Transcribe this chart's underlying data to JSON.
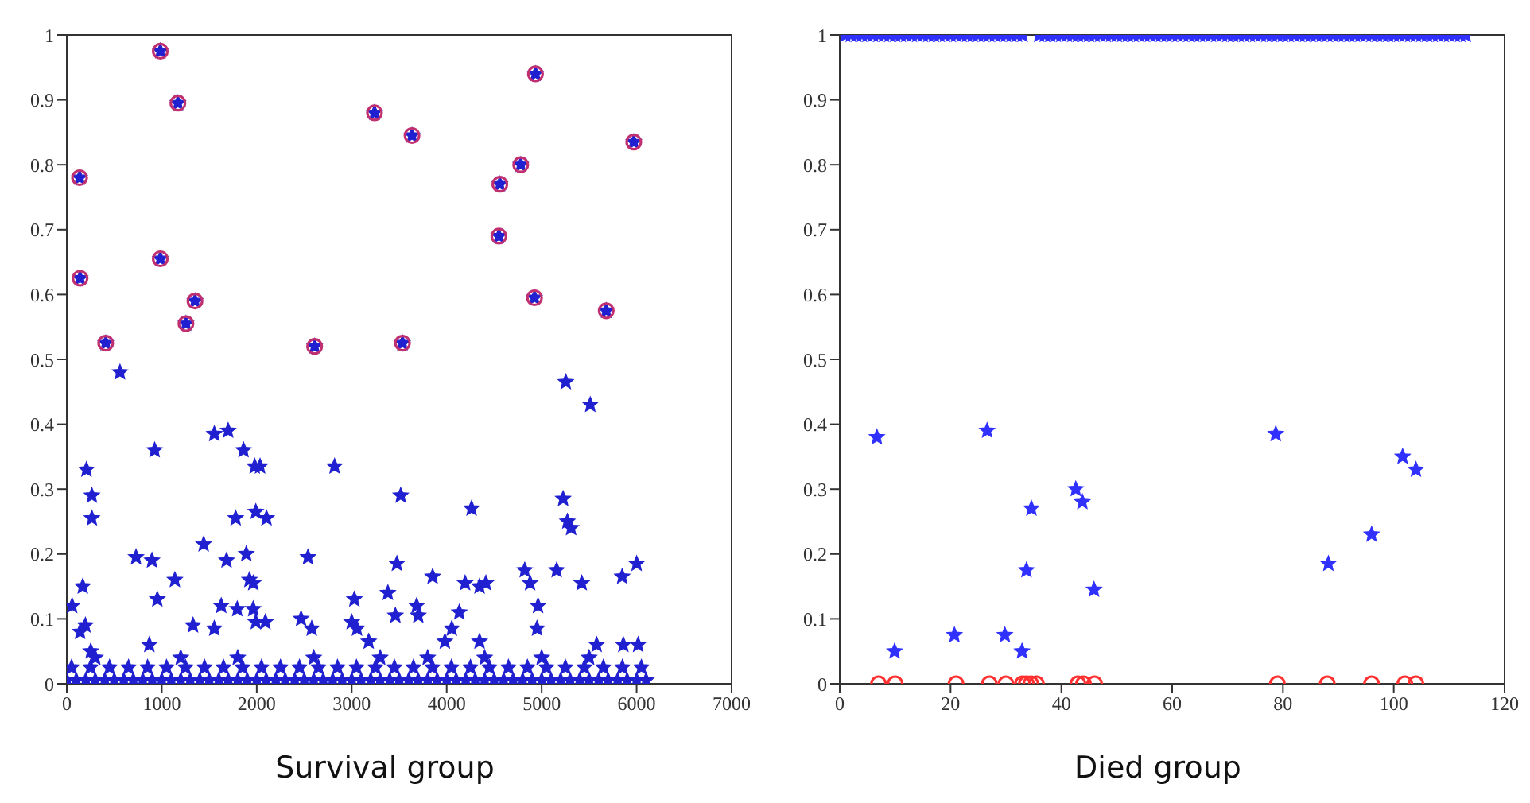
{
  "chart_data": [
    {
      "type": "scatter",
      "xlabel": "Survival group",
      "xlim": [
        0,
        7000
      ],
      "xticks": [
        0,
        1000,
        2000,
        3000,
        4000,
        5000,
        6000,
        7000
      ],
      "ylim": [
        0,
        1
      ],
      "yticks": [
        0,
        0.1,
        0.2,
        0.3,
        0.4,
        0.5,
        0.6,
        0.7,
        0.8,
        0.9,
        1
      ],
      "series": [
        {
          "color": "#2020d0",
          "marker": "star",
          "x": [
            560,
            56,
            168,
            207,
            264,
            264,
            196,
            140,
            252,
            729,
            897,
            925,
            953,
            869,
            1138,
            1329,
            1441,
            1553,
            1699,
            1682,
            1626,
            1553,
            1778,
            1795,
            1861,
            1890,
            1923,
            1963,
            1979,
            2035,
            1990,
            2103,
            1963,
            1990,
            2091,
            2540,
            2467,
            2579,
            2820,
            3028,
            3000,
            3056,
            3179,
            3381,
            3460,
            3476,
            3516,
            3684,
            3701,
            3852,
            3981,
            4054,
            4133,
            4194,
            4262,
            4346,
            4413,
            4346,
            4822,
            4878,
            4962,
            4951,
            5158,
            5226,
            5254,
            5271,
            5310,
            5422,
            5512,
            5848,
            6000,
            5579,
            5860,
            6016,
            135,
            140,
            410,
            985,
            985,
            1170,
            1255,
            1350,
            2610,
            3240,
            3535,
            3635,
            4550,
            4560,
            4780,
            4935,
            4925,
            5680,
            5970,
            0,
            100,
            200,
            300,
            400,
            500,
            600,
            700,
            800,
            900,
            1000,
            1100,
            1200,
            1300,
            1400,
            1500,
            1600,
            1700,
            1800,
            1900,
            2000,
            2100,
            2200,
            2300,
            2400,
            2500,
            2600,
            2700,
            2800,
            2900,
            3000,
            3100,
            3200,
            3300,
            3400,
            3500,
            3600,
            3700,
            3800,
            3900,
            4000,
            4100,
            4200,
            4300,
            4400,
            4500,
            4600,
            4700,
            4800,
            4900,
            5000,
            5100,
            5200,
            5300,
            5400,
            5500,
            5600,
            5700,
            5800,
            5900,
            6000,
            6100,
            50,
            250,
            450,
            650,
            850,
            1050,
            1250,
            1450,
            1650,
            1850,
            2050,
            2250,
            2450,
            2650,
            2850,
            3050,
            3250,
            3450,
            3650,
            3850,
            4050,
            4250,
            4450,
            4650,
            4850,
            5050,
            5250,
            5450,
            5650,
            5850,
            6050,
            300,
            1200,
            1800,
            2600,
            3300,
            3800,
            4400,
            5000,
            5500
          ],
          "values": [
            0.48,
            0.12,
            0.15,
            0.33,
            0.29,
            0.255,
            0.09,
            0.08,
            0.05,
            0.195,
            0.19,
            0.36,
            0.13,
            0.06,
            0.16,
            0.09,
            0.215,
            0.385,
            0.39,
            0.19,
            0.12,
            0.085,
            0.255,
            0.115,
            0.36,
            0.2,
            0.16,
            0.155,
            0.335,
            0.335,
            0.265,
            0.255,
            0.115,
            0.095,
            0.095,
            0.195,
            0.1,
            0.085,
            0.335,
            0.13,
            0.095,
            0.085,
            0.065,
            0.14,
            0.105,
            0.185,
            0.29,
            0.12,
            0.105,
            0.165,
            0.065,
            0.085,
            0.11,
            0.155,
            0.27,
            0.15,
            0.155,
            0.065,
            0.175,
            0.155,
            0.12,
            0.085,
            0.175,
            0.285,
            0.465,
            0.25,
            0.24,
            0.155,
            0.43,
            0.165,
            0.185,
            0.06,
            0.06,
            0.06,
            0.78,
            0.625,
            0.525,
            0.975,
            0.655,
            0.895,
            0.555,
            0.59,
            0.52,
            0.88,
            0.525,
            0.845,
            0.69,
            0.77,
            0.8,
            0.94,
            0.595,
            0.575,
            0.835,
            0.005,
            0.005,
            0.005,
            0.005,
            0.005,
            0.005,
            0.005,
            0.005,
            0.005,
            0.005,
            0.005,
            0.005,
            0.005,
            0.005,
            0.005,
            0.005,
            0.005,
            0.005,
            0.005,
            0.005,
            0.005,
            0.005,
            0.005,
            0.005,
            0.005,
            0.005,
            0.005,
            0.005,
            0.005,
            0.005,
            0.005,
            0.005,
            0.005,
            0.005,
            0.005,
            0.005,
            0.005,
            0.005,
            0.005,
            0.005,
            0.005,
            0.005,
            0.005,
            0.005,
            0.005,
            0.005,
            0.005,
            0.005,
            0.005,
            0.005,
            0.005,
            0.005,
            0.005,
            0.005,
            0.005,
            0.005,
            0.005,
            0.005,
            0.005,
            0.005,
            0.005,
            0.005,
            0.025,
            0.025,
            0.025,
            0.025,
            0.025,
            0.025,
            0.025,
            0.025,
            0.025,
            0.025,
            0.025,
            0.025,
            0.025,
            0.025,
            0.025,
            0.025,
            0.025,
            0.025,
            0.025,
            0.025,
            0.025,
            0.025,
            0.025,
            0.025,
            0.025,
            0.025,
            0.025,
            0.025,
            0.025,
            0.025,
            0.025,
            0.04,
            0.04,
            0.04,
            0.04,
            0.04,
            0.04,
            0.04,
            0.04,
            0.04
          ]
        },
        {
          "color": "#c03070",
          "marker": "circle",
          "x": [
            135,
            140,
            410,
            985,
            985,
            1170,
            1255,
            1350,
            2610,
            3240,
            3535,
            3635,
            4550,
            4560,
            4780,
            4935,
            4925,
            5680,
            5970
          ],
          "values": [
            0.78,
            0.625,
            0.525,
            0.975,
            0.655,
            0.895,
            0.555,
            0.59,
            0.52,
            0.88,
            0.525,
            0.845,
            0.69,
            0.77,
            0.8,
            0.94,
            0.595,
            0.575,
            0.835
          ]
        }
      ]
    },
    {
      "type": "scatter",
      "xlabel": "Died group",
      "xlim": [
        0,
        120
      ],
      "xticks": [
        0,
        20,
        40,
        60,
        80,
        100,
        120
      ],
      "ylim": [
        0,
        1
      ],
      "yticks": [
        0,
        0.1,
        0.2,
        0.3,
        0.4,
        0.5,
        0.6,
        0.7,
        0.8,
        0.9,
        1
      ],
      "series": [
        {
          "color": "#3030ff",
          "marker": "star",
          "x": [
            6.7,
            9.9,
            20.7,
            26.6,
            29.8,
            32.9,
            33.7,
            34.6,
            42.6,
            43.8,
            45.9,
            78.7,
            88.2,
            96,
            101.6,
            104,
            1,
            2,
            3,
            4,
            5,
            6,
            7,
            8,
            9,
            10,
            11,
            12,
            13,
            14,
            15,
            16,
            17,
            18,
            19,
            20,
            21,
            22,
            23,
            24,
            25,
            26,
            27,
            28,
            29,
            30,
            31,
            32,
            33,
            36,
            37,
            38,
            39,
            40,
            41,
            42,
            43,
            44,
            45,
            46,
            47,
            48,
            49,
            50,
            51,
            52,
            53,
            54,
            55,
            56,
            57,
            58,
            59,
            60,
            61,
            62,
            63,
            64,
            65,
            66,
            67,
            68,
            69,
            70,
            71,
            72,
            73,
            74,
            75,
            76,
            77,
            78,
            79,
            80,
            81,
            82,
            83,
            84,
            85,
            86,
            87,
            88,
            89,
            90,
            91,
            92,
            93,
            94,
            95,
            96,
            97,
            98,
            99,
            100,
            101,
            102,
            103,
            104,
            105,
            106,
            107,
            108,
            109,
            110,
            111,
            112,
            113
          ],
          "values": [
            0.38,
            0.05,
            0.075,
            0.39,
            0.075,
            0.05,
            0.175,
            0.27,
            0.3,
            0.28,
            0.145,
            0.385,
            0.185,
            0.23,
            0.35,
            0.33,
            1,
            1,
            1,
            1,
            1,
            1,
            1,
            1,
            1,
            1,
            1,
            1,
            1,
            1,
            1,
            1,
            1,
            1,
            1,
            1,
            1,
            1,
            1,
            1,
            1,
            1,
            1,
            1,
            1,
            1,
            1,
            1,
            1,
            1,
            1,
            1,
            1,
            1,
            1,
            1,
            1,
            1,
            1,
            1,
            1,
            1,
            1,
            1,
            1,
            1,
            1,
            1,
            1,
            1,
            1,
            1,
            1,
            1,
            1,
            1,
            1,
            1,
            1,
            1,
            1,
            1,
            1,
            1,
            1,
            1,
            1,
            1,
            1,
            1,
            1,
            1,
            1,
            1,
            1,
            1,
            1,
            1,
            1,
            1,
            1,
            1,
            1,
            1,
            1,
            1,
            1,
            1,
            1,
            1,
            1,
            1,
            1,
            1,
            1,
            1,
            1,
            1,
            1,
            1,
            1,
            1,
            1,
            1,
            1,
            1,
            1
          ]
        },
        {
          "color": "#ff3030",
          "marker": "circle",
          "x": [
            7,
            10,
            21,
            27,
            30,
            33,
            33.7,
            34.5,
            35.5,
            43,
            44,
            46,
            79,
            88,
            96,
            102,
            104
          ],
          "values": [
            0,
            0,
            0,
            0,
            0,
            0,
            0,
            0,
            0,
            0,
            0,
            0,
            0,
            0,
            0,
            0,
            0
          ]
        }
      ]
    }
  ]
}
